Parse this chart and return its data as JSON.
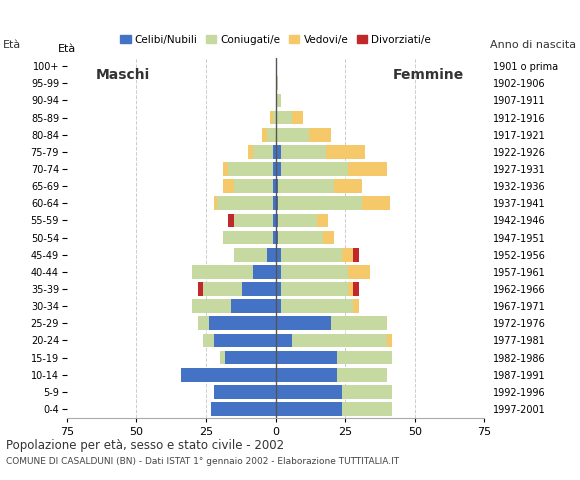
{
  "age_groups": [
    "0-4",
    "5-9",
    "10-14",
    "15-19",
    "20-24",
    "25-29",
    "30-34",
    "35-39",
    "40-44",
    "45-49",
    "50-54",
    "55-59",
    "60-64",
    "65-69",
    "70-74",
    "75-79",
    "80-84",
    "85-89",
    "90-94",
    "95-99",
    "100+"
  ],
  "birth_years": [
    "1997-2001",
    "1992-1996",
    "1987-1991",
    "1982-1986",
    "1977-1981",
    "1972-1976",
    "1967-1971",
    "1962-1966",
    "1957-1961",
    "1952-1956",
    "1947-1951",
    "1942-1946",
    "1937-1941",
    "1932-1936",
    "1927-1931",
    "1922-1926",
    "1917-1921",
    "1912-1916",
    "1907-1911",
    "1902-1906",
    "1901 o prima"
  ],
  "males": {
    "celibe": [
      23,
      22,
      34,
      18,
      22,
      24,
      16,
      12,
      8,
      3,
      1,
      1,
      1,
      1,
      1,
      1,
      0,
      0,
      0,
      0,
      0
    ],
    "coniugato": [
      0,
      0,
      0,
      2,
      4,
      4,
      14,
      14,
      22,
      12,
      18,
      14,
      20,
      14,
      16,
      7,
      3,
      1,
      0,
      0,
      0
    ],
    "vedovo": [
      0,
      0,
      0,
      0,
      0,
      0,
      0,
      0,
      0,
      0,
      0,
      0,
      1,
      4,
      2,
      2,
      2,
      1,
      0,
      0,
      0
    ],
    "divorziato": [
      0,
      0,
      0,
      0,
      0,
      0,
      0,
      2,
      0,
      0,
      0,
      2,
      0,
      0,
      0,
      0,
      0,
      0,
      0,
      0,
      0
    ]
  },
  "females": {
    "nubile": [
      24,
      24,
      22,
      22,
      6,
      20,
      2,
      2,
      2,
      2,
      1,
      1,
      1,
      1,
      2,
      2,
      0,
      0,
      0,
      0,
      0
    ],
    "coniugata": [
      18,
      18,
      18,
      20,
      34,
      20,
      26,
      24,
      24,
      22,
      16,
      14,
      30,
      20,
      24,
      16,
      12,
      6,
      2,
      1,
      0
    ],
    "vedova": [
      0,
      0,
      0,
      0,
      2,
      0,
      2,
      2,
      8,
      4,
      4,
      4,
      10,
      10,
      14,
      14,
      8,
      4,
      0,
      0,
      0
    ],
    "divorziata": [
      0,
      0,
      0,
      0,
      0,
      0,
      0,
      2,
      0,
      2,
      0,
      0,
      0,
      0,
      0,
      0,
      0,
      0,
      0,
      0,
      0
    ]
  },
  "colors": {
    "celibe_nubile": "#4472C4",
    "coniugato_coniugata": "#C6D9A0",
    "vedovo_vedova": "#F5C96A",
    "divorziato_divorziata": "#C0282A"
  },
  "title": "Popolazione per età, sesso e stato civile - 2002",
  "subtitle": "COMUNE DI CASALDUNI (BN) - Dati ISTAT 1° gennaio 2002 - Elaborazione TUTTITALIA.IT",
  "legend_labels": [
    "Celibi/Nubili",
    "Coniugati/e",
    "Vedovi/e",
    "Divorziati/e"
  ],
  "xlim": 75,
  "background_color": "#ffffff",
  "grid_color": "#cccccc",
  "maschi_label": "Maschi",
  "femmine_label": "Femmine",
  "eta_label": "Età",
  "anno_label": "Anno di nascita"
}
